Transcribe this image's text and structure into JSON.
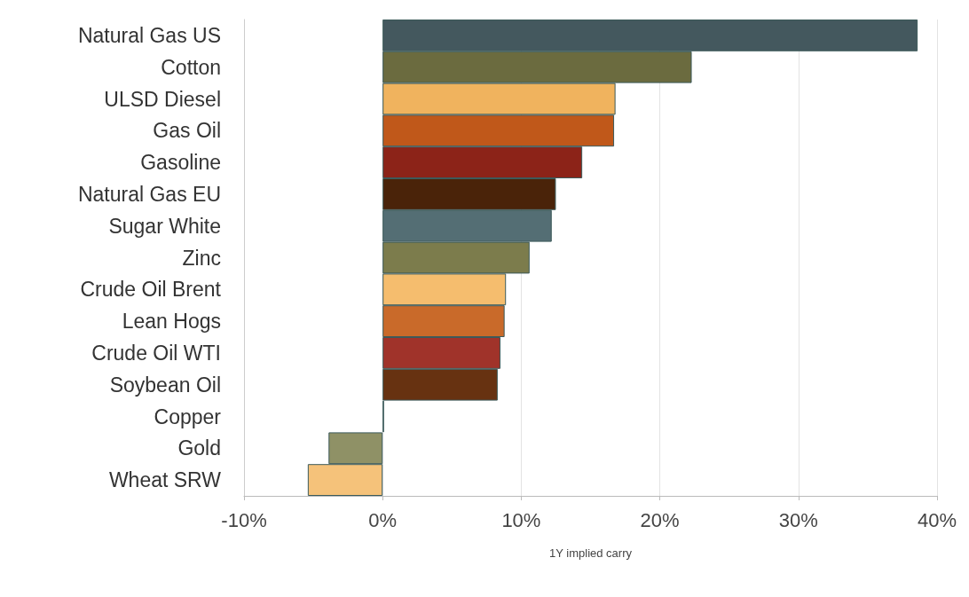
{
  "chart_data": {
    "type": "bar",
    "orientation": "horizontal",
    "xlabel": "1Y implied carry",
    "categories": [
      "Natural Gas US",
      "Cotton",
      "ULSD Diesel",
      "Gas Oil",
      "Gasoline",
      "Natural Gas EU",
      "Sugar White",
      "Zinc",
      "Crude Oil Brent",
      "Lean Hogs",
      "Crude Oil WTI",
      "Soybean Oil",
      "Copper",
      "Gold",
      "Wheat SRW"
    ],
    "values": [
      38.6,
      22.3,
      16.8,
      16.7,
      14.4,
      12.5,
      12.2,
      10.6,
      8.9,
      8.8,
      8.5,
      8.3,
      0.1,
      -3.9,
      -5.4
    ],
    "colors": [
      "#44585e",
      "#6b6b3f",
      "#f0b35e",
      "#c0581a",
      "#8c2318",
      "#4a2309",
      "#546e74",
      "#7c7c4c",
      "#f5bd6e",
      "#c96a2a",
      "#a0332a",
      "#673211",
      "#4e6a74",
      "#8f9166",
      "#f5c27a"
    ],
    "xlim": [
      -10,
      40
    ],
    "xticks": [
      {
        "value": -10,
        "label": "-10%"
      },
      {
        "value": 0,
        "label": "0%"
      },
      {
        "value": 10,
        "label": "10%"
      },
      {
        "value": 20,
        "label": "20%"
      },
      {
        "value": 30,
        "label": "30%"
      },
      {
        "value": 40,
        "label": "40%"
      }
    ],
    "grid": "x"
  }
}
